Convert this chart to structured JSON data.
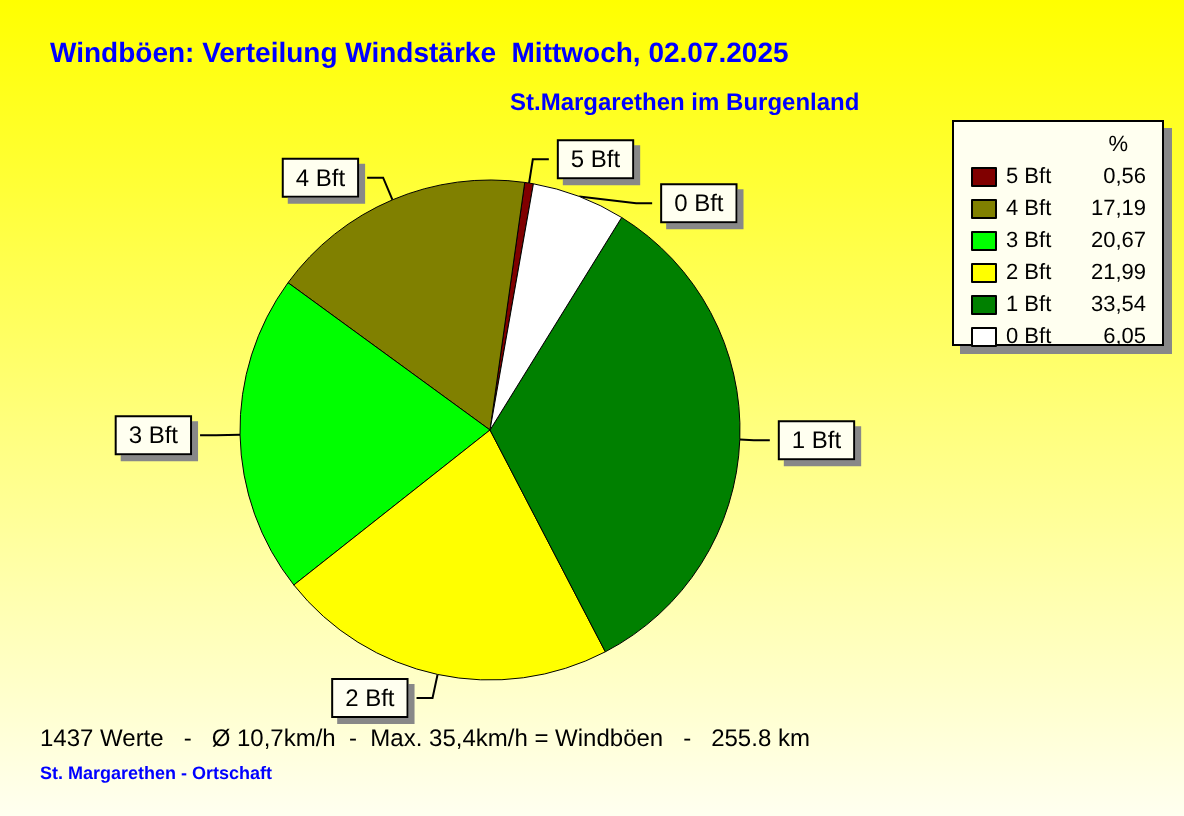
{
  "chart_data": {
    "type": "pie",
    "title": "Windböen: Verteilung Windstärke  Mittwoch, 02.07.2025",
    "subtitle": "St.Margarethen im Burgenland",
    "legend_title": "%",
    "legend": "top right",
    "categories": [
      "5 Bft",
      "4 Bft",
      "3 Bft",
      "2 Bft",
      "1 Bft",
      "0 Bft"
    ],
    "values": [
      0.56,
      17.19,
      20.67,
      21.99,
      33.54,
      6.05
    ],
    "value_labels": [
      "0,56",
      "17,19",
      "20,67",
      "21,99",
      "33,54",
      "6,05"
    ],
    "colors": [
      "#800000",
      "#808000",
      "#00ff00",
      "#ffff00",
      "#008000",
      "#ffffff"
    ],
    "annotations": [
      "1437 Werte   -   Ø 10,7km/h  -  Max. 35,4km/h = Windböen   -   255.8 km",
      "St. Margarethen - Ortschaft"
    ]
  }
}
